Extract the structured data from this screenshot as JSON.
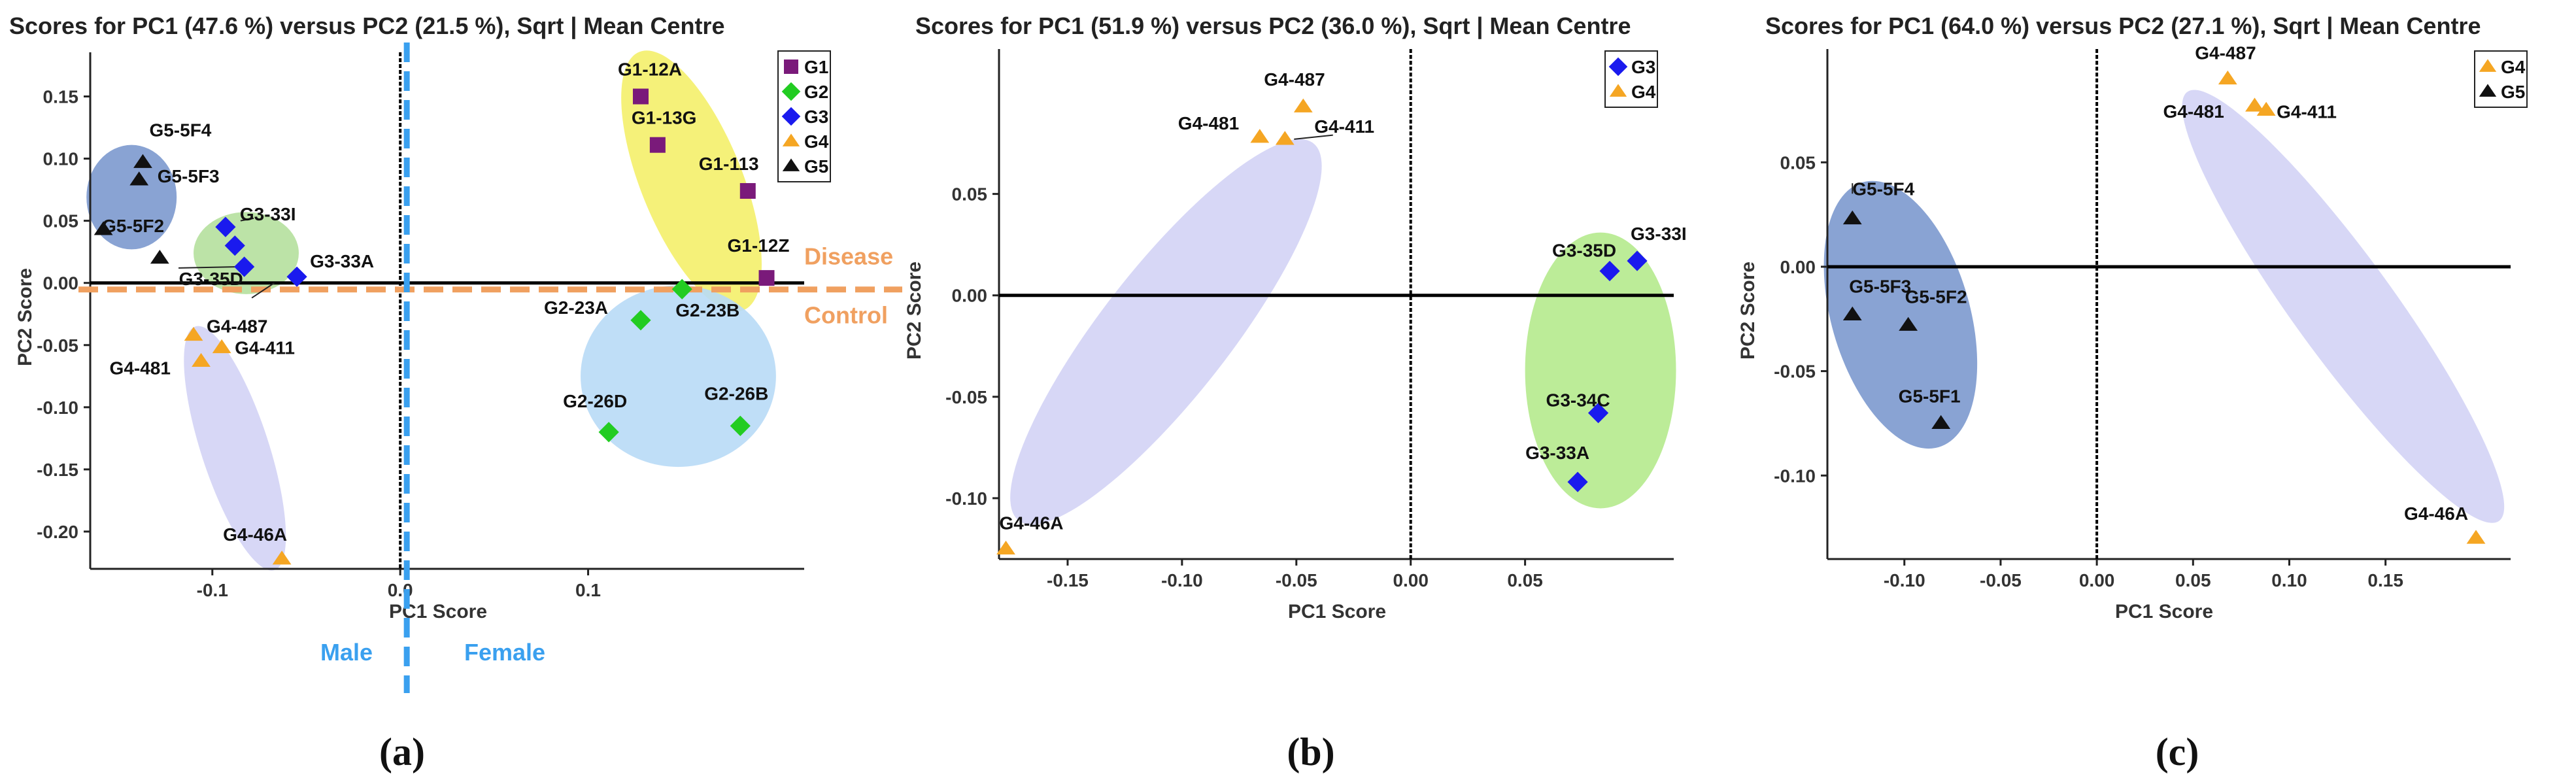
{
  "colors": {
    "G1": "#7a1a7a",
    "G2": "#22cc22",
    "G3": "#1a1aee",
    "G4": "#f5a623",
    "G5": "#111111",
    "disease_line": "#f0a060",
    "sex_line": "#3aa0ef"
  },
  "chart_data": [
    {
      "type": "scatter",
      "subplot_label": "(a)",
      "title": "Scores for PC1 (47.6 %) versus PC2 (21.5 %), Sqrt | Mean Centre",
      "xlabel": "PC1 Score",
      "ylabel": "PC2 Score",
      "xlim": [
        -0.165,
        0.215
      ],
      "ylim": [
        -0.23,
        0.175
      ],
      "xticks": [
        -0.1,
        0.0,
        0.1
      ],
      "xtick_labels": [
        "-0.1",
        "0.0",
        "0.1"
      ],
      "yticks": [
        -0.2,
        -0.15,
        -0.1,
        -0.05,
        0.0,
        0.05,
        0.1,
        0.15
      ],
      "ytick_labels": [
        "-0.20",
        "-0.15",
        "-0.10",
        "-0.05",
        "0.00",
        "0.05",
        "0.10",
        "0.15"
      ],
      "legend": [
        "G1",
        "G2",
        "G3",
        "G4",
        "G5"
      ],
      "legend_position": "top-right",
      "series": [
        {
          "name": "G1",
          "marker": "square",
          "points": [
            {
              "label": "G1-12A",
              "x": 0.128,
              "y": 0.15
            },
            {
              "label": "G1-13G",
              "x": 0.137,
              "y": 0.111
            },
            {
              "label": "G1-113",
              "x": 0.185,
              "y": 0.074
            },
            {
              "label": "G1-12Z",
              "x": 0.195,
              "y": 0.004
            }
          ]
        },
        {
          "name": "G2",
          "marker": "diamond",
          "points": [
            {
              "label": "G2-23A",
              "x": 0.128,
              "y": -0.03
            },
            {
              "label": "G2-23B",
              "x": 0.15,
              "y": -0.005
            },
            {
              "label": "G2-26D",
              "x": 0.111,
              "y": -0.12
            },
            {
              "label": "G2-26B",
              "x": 0.181,
              "y": -0.115
            }
          ]
        },
        {
          "name": "G3",
          "marker": "diamond",
          "points": [
            {
              "label": "G3-33I",
              "x": -0.093,
              "y": 0.045
            },
            {
              "label": "",
              "x": -0.088,
              "y": 0.03
            },
            {
              "label": "G3-35D",
              "x": -0.083,
              "y": 0.013
            },
            {
              "label": "G3-33A",
              "x": -0.055,
              "y": 0.005
            }
          ]
        },
        {
          "name": "G4",
          "marker": "triangle",
          "points": [
            {
              "label": "G4-487",
              "x": -0.11,
              "y": -0.042
            },
            {
              "label": "G4-481",
              "x": -0.106,
              "y": -0.063
            },
            {
              "label": "G4-411",
              "x": -0.095,
              "y": -0.052
            },
            {
              "label": "G4-46A",
              "x": -0.063,
              "y": -0.222
            }
          ]
        },
        {
          "name": "G5",
          "marker": "triangle",
          "points": [
            {
              "label": "G5-5F4",
              "x": -0.137,
              "y": 0.097
            },
            {
              "label": "G5-5F3",
              "x": -0.139,
              "y": 0.083
            },
            {
              "label": "G5-5F2",
              "x": -0.158,
              "y": 0.043
            },
            {
              "label": "",
              "x": -0.128,
              "y": 0.02
            }
          ]
        }
      ],
      "annotations": {
        "disease": "Disease",
        "control": "Control",
        "male": "Male",
        "female": "Female"
      }
    },
    {
      "type": "scatter",
      "subplot_label": "(b)",
      "title": "Scores for PC1 (51.9 %) versus PC2 (36.0 %), Sqrt | Mean Centre",
      "xlabel": "PC1 Score",
      "ylabel": "PC2 Score",
      "xlim": [
        -0.18,
        0.115
      ],
      "ylim": [
        -0.13,
        0.115
      ],
      "xticks": [
        -0.15,
        -0.1,
        -0.05,
        0.0,
        0.05
      ],
      "xtick_labels": [
        "-0.15",
        "-0.10",
        "-0.05",
        "0.00",
        "0.05"
      ],
      "yticks": [
        -0.1,
        -0.05,
        0.0,
        0.05
      ],
      "ytick_labels": [
        "-0.10",
        "-0.05",
        "0.00",
        "0.05"
      ],
      "legend": [
        "G3",
        "G4"
      ],
      "legend_position": "top-right",
      "series": [
        {
          "name": "G3",
          "marker": "diamond",
          "points": [
            {
              "label": "G3-33I",
              "x": 0.099,
              "y": 0.017
            },
            {
              "label": "G3-35D",
              "x": 0.087,
              "y": 0.012
            },
            {
              "label": "G3-34C",
              "x": 0.082,
              "y": -0.058
            },
            {
              "label": "G3-33A",
              "x": 0.073,
              "y": -0.092
            }
          ]
        },
        {
          "name": "G4",
          "marker": "triangle",
          "points": [
            {
              "label": "G4-487",
              "x": -0.047,
              "y": 0.093
            },
            {
              "label": "G4-481",
              "x": -0.066,
              "y": 0.078
            },
            {
              "label": "G4-411",
              "x": -0.055,
              "y": 0.077
            },
            {
              "label": "G4-46A",
              "x": -0.177,
              "y": -0.125
            }
          ]
        }
      ]
    },
    {
      "type": "scatter",
      "subplot_label": "(c)",
      "title": "Scores for PC1 (64.0 %) versus PC2 (27.1 %), Sqrt | Mean Centre",
      "xlabel": "PC1 Score",
      "ylabel": "PC2 Score",
      "xlim": [
        -0.14,
        0.215
      ],
      "ylim": [
        -0.14,
        0.098
      ],
      "xticks": [
        -0.1,
        -0.05,
        0.0,
        0.05,
        0.1,
        0.15
      ],
      "xtick_labels": [
        "-0.10",
        "-0.05",
        "0.00",
        "0.05",
        "0.10",
        "0.15"
      ],
      "yticks": [
        -0.1,
        -0.05,
        0.0,
        0.05
      ],
      "ytick_labels": [
        "-0.10",
        "-0.05",
        "0.00",
        "0.05"
      ],
      "legend": [
        "G4",
        "G5"
      ],
      "legend_position": "top-right",
      "series": [
        {
          "name": "G4",
          "marker": "triangle",
          "points": [
            {
              "label": "G4-487",
              "x": 0.068,
              "y": 0.09
            },
            {
              "label": "G4-481",
              "x": 0.082,
              "y": 0.077
            },
            {
              "label": "G4-411",
              "x": 0.088,
              "y": 0.075
            },
            {
              "label": "G4-46A",
              "x": 0.197,
              "y": -0.13
            }
          ]
        },
        {
          "name": "G5",
          "marker": "triangle",
          "points": [
            {
              "label": "G5-5F4",
              "x": -0.127,
              "y": 0.023
            },
            {
              "label": "G5-5F3",
              "x": -0.127,
              "y": -0.023
            },
            {
              "label": "G5-5F2",
              "x": -0.098,
              "y": -0.028
            },
            {
              "label": "G5-5F1",
              "x": -0.081,
              "y": -0.075
            }
          ]
        }
      ]
    }
  ]
}
